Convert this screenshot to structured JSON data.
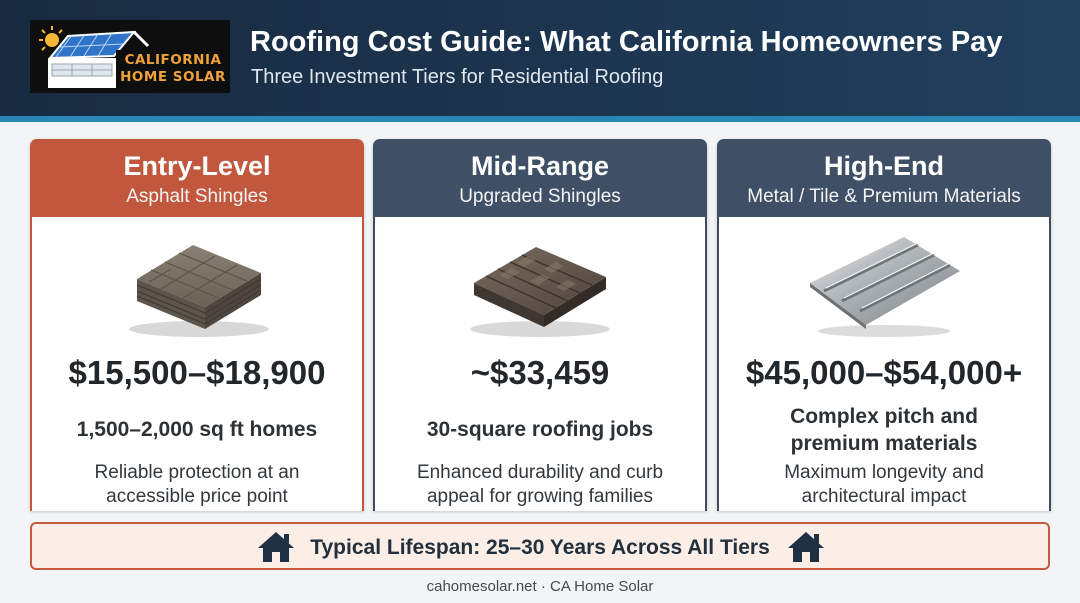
{
  "brand": {
    "logo_line1": "CALIFORNIA",
    "logo_line2": "HOME SOLAR"
  },
  "header": {
    "title": "Roofing Cost Guide: What California Homeowners Pay",
    "subtitle": "Three Investment Tiers for Residential Roofing"
  },
  "tiers": [
    {
      "title": "Entry-Level",
      "subtitle": "Asphalt Shingles",
      "price": "$15,500–$18,900",
      "size_line1": "1,500–2,000 sq ft homes",
      "size_line2": "",
      "desc_line1": "Reliable protection at an",
      "desc_line2": "accessible price point",
      "color": "#c1583d",
      "icon": "asphalt-shingle-stack"
    },
    {
      "title": "Mid-Range",
      "subtitle": "Upgraded Shingles",
      "price": "~$33,459",
      "size_line1": "30-square roofing jobs",
      "size_line2": "",
      "desc_line1": "Enhanced durability and curb",
      "desc_line2": "appeal for growing families",
      "color": "#3e4f66",
      "icon": "architectural-shingle-block"
    },
    {
      "title": "High-End",
      "subtitle": "Metal / Tile & Premium Materials",
      "price": "$45,000–$54,000+",
      "size_line1": "Complex pitch and",
      "size_line2": "premium materials",
      "desc_line1": "Maximum longevity and",
      "desc_line2": "architectural impact",
      "color": "#3e4f66",
      "icon": "standing-seam-metal-panel"
    }
  ],
  "lifespan": {
    "text": "Typical Lifespan: 25–30 Years Across All Tiers",
    "icon": "house-icon"
  },
  "credit": "cahomesolar.net · CA Home Solar",
  "colors": {
    "header_bg": "#1b3149",
    "accent_stripe": "#2a86b5",
    "entry_header": "#c1583d",
    "mid_high_header": "#3e4f66",
    "banner_border": "#c65a3f",
    "banner_bg": "#fbeee6"
  }
}
